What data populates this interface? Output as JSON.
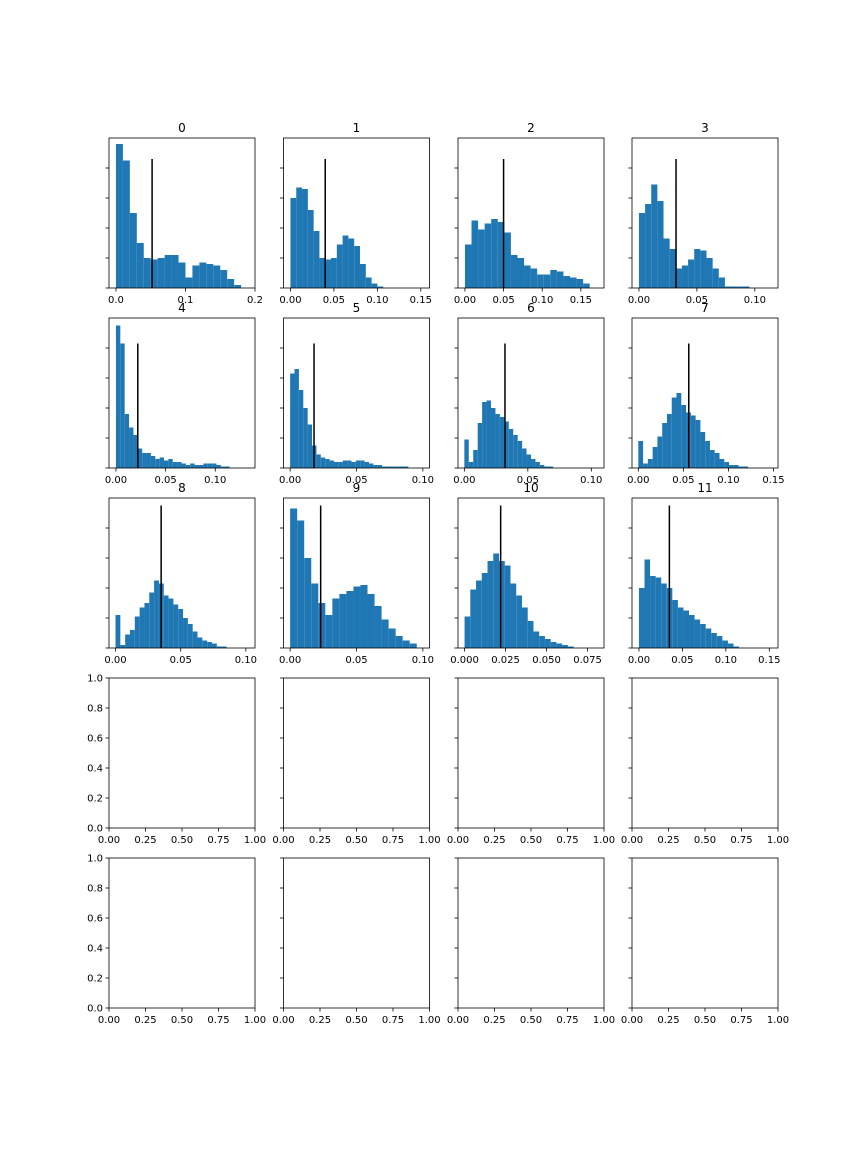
{
  "figure": {
    "rows": 5,
    "cols": 4,
    "bar_color": "#1f77b4",
    "marker_color": "#000000"
  },
  "chart_data": [
    {
      "type": "bar",
      "title": "0",
      "xlim": [
        -0.01,
        0.2
      ],
      "ylim": [
        0,
        1.0
      ],
      "x_ticks": [
        0.0,
        0.1,
        0.2
      ],
      "x_tick_labels": [
        "0.0",
        "0.1",
        "0.2"
      ],
      "y_ticks": [
        0.0,
        0.2,
        0.4,
        0.6,
        0.8
      ],
      "y_tick_labels": [],
      "bin_start": 0.0,
      "bin_width": 0.01,
      "values": [
        0.96,
        0.85,
        0.5,
        0.3,
        0.2,
        0.19,
        0.2,
        0.22,
        0.22,
        0.17,
        0.07,
        0.15,
        0.17,
        0.16,
        0.15,
        0.12,
        0.06,
        0.02
      ],
      "marker_x": 0.052,
      "marker_height": 0.86
    },
    {
      "type": "bar",
      "title": "1",
      "xlim": [
        -0.008,
        0.16
      ],
      "ylim": [
        0,
        1.0
      ],
      "x_ticks": [
        0.0,
        0.05,
        0.1,
        0.15
      ],
      "x_tick_labels": [
        "0.00",
        "0.05",
        "0.10",
        "0.15"
      ],
      "y_ticks": [
        0.0,
        0.2,
        0.4,
        0.6,
        0.8
      ],
      "y_tick_labels": [],
      "bin_start": 0.0,
      "bin_width": 0.00667,
      "values": [
        0.6,
        0.67,
        0.66,
        0.52,
        0.38,
        0.2,
        0.19,
        0.2,
        0.29,
        0.35,
        0.33,
        0.28,
        0.16,
        0.07,
        0.03,
        0.01
      ],
      "marker_x": 0.04,
      "marker_height": 0.86
    },
    {
      "type": "bar",
      "title": "2",
      "xlim": [
        -0.009,
        0.18
      ],
      "ylim": [
        0,
        1.0
      ],
      "x_ticks": [
        0.0,
        0.05,
        0.1,
        0.15
      ],
      "x_tick_labels": [
        "0.00",
        "0.05",
        "0.10",
        "0.15"
      ],
      "y_ticks": [
        0.0,
        0.2,
        0.4,
        0.6,
        0.8
      ],
      "y_tick_labels": [],
      "bin_start": 0.0,
      "bin_width": 0.0085,
      "values": [
        0.29,
        0.45,
        0.39,
        0.43,
        0.46,
        0.44,
        0.37,
        0.22,
        0.2,
        0.15,
        0.13,
        0.09,
        0.09,
        0.12,
        0.11,
        0.08,
        0.07,
        0.06,
        0.03
      ],
      "marker_x": 0.05,
      "marker_height": 0.86
    },
    {
      "type": "bar",
      "title": "3",
      "xlim": [
        -0.006,
        0.12
      ],
      "ylim": [
        0,
        1.0
      ],
      "x_ticks": [
        0.0,
        0.05,
        0.1
      ],
      "x_tick_labels": [
        "0.00",
        "0.05",
        "0.10"
      ],
      "y_ticks": [
        0.0,
        0.2,
        0.4,
        0.6,
        0.8
      ],
      "y_tick_labels": [],
      "bin_start": 0.0,
      "bin_width": 0.0053,
      "values": [
        0.5,
        0.56,
        0.69,
        0.58,
        0.33,
        0.26,
        0.13,
        0.15,
        0.19,
        0.26,
        0.25,
        0.2,
        0.13,
        0.07,
        0.01,
        0.01,
        0.01,
        0.01
      ],
      "marker_x": 0.032,
      "marker_height": 0.86
    },
    {
      "type": "bar",
      "title": "4",
      "xlim": [
        -0.007,
        0.14
      ],
      "ylim": [
        0,
        1.0
      ],
      "x_ticks": [
        0.0,
        0.05,
        0.1
      ],
      "x_tick_labels": [
        "0.00",
        "0.05",
        "0.10"
      ],
      "y_ticks": [
        0.0,
        0.2,
        0.4,
        0.6,
        0.8
      ],
      "y_tick_labels": [],
      "bin_start": 0.0,
      "bin_width": 0.0044,
      "values": [
        0.95,
        0.83,
        0.36,
        0.27,
        0.22,
        0.13,
        0.1,
        0.1,
        0.08,
        0.06,
        0.07,
        0.05,
        0.06,
        0.04,
        0.04,
        0.03,
        0.02,
        0.03,
        0.02,
        0.02,
        0.03,
        0.03,
        0.03,
        0.02,
        0.01,
        0.01
      ],
      "marker_x": 0.022,
      "marker_height": 0.83
    },
    {
      "type": "bar",
      "title": "5",
      "xlim": [
        -0.005,
        0.105
      ],
      "ylim": [
        0,
        1.0
      ],
      "x_ticks": [
        0.0,
        0.05,
        0.1
      ],
      "x_tick_labels": [
        "0.00",
        "0.05",
        "0.10"
      ],
      "y_ticks": [
        0.0,
        0.2,
        0.4,
        0.6,
        0.8
      ],
      "y_tick_labels": [],
      "bin_start": 0.0,
      "bin_width": 0.0033,
      "values": [
        0.63,
        0.66,
        0.52,
        0.4,
        0.29,
        0.15,
        0.09,
        0.07,
        0.06,
        0.05,
        0.04,
        0.04,
        0.05,
        0.05,
        0.04,
        0.05,
        0.05,
        0.04,
        0.03,
        0.02,
        0.02,
        0.01,
        0.01,
        0.01,
        0.01,
        0.01,
        0.01
      ],
      "marker_x": 0.018,
      "marker_height": 0.83
    },
    {
      "type": "bar",
      "title": "6",
      "xlim": [
        -0.005,
        0.11
      ],
      "ylim": [
        0,
        1.0
      ],
      "x_ticks": [
        0.0,
        0.05,
        0.1
      ],
      "x_tick_labels": [
        "0.00",
        "0.05",
        "0.10"
      ],
      "y_ticks": [
        0.0,
        0.2,
        0.4,
        0.6,
        0.8
      ],
      "y_tick_labels": [],
      "bin_start": 0.0,
      "bin_width": 0.0035,
      "values": [
        0.19,
        0.04,
        0.12,
        0.3,
        0.44,
        0.45,
        0.4,
        0.36,
        0.34,
        0.31,
        0.26,
        0.22,
        0.18,
        0.13,
        0.09,
        0.06,
        0.04,
        0.02,
        0.01,
        0.01
      ],
      "marker_x": 0.032,
      "marker_height": 0.83
    },
    {
      "type": "bar",
      "title": "7",
      "xlim": [
        -0.007,
        0.155
      ],
      "ylim": [
        0,
        1.0
      ],
      "x_ticks": [
        0.0,
        0.05,
        0.1,
        0.15
      ],
      "x_tick_labels": [
        "0.00",
        "0.05",
        "0.10",
        "0.15"
      ],
      "y_ticks": [
        0.0,
        0.2,
        0.4,
        0.6,
        0.8
      ],
      "y_tick_labels": [],
      "bin_start": 0.0,
      "bin_width": 0.0053,
      "values": [
        0.18,
        0.03,
        0.06,
        0.14,
        0.21,
        0.3,
        0.36,
        0.47,
        0.5,
        0.42,
        0.37,
        0.35,
        0.32,
        0.24,
        0.18,
        0.12,
        0.1,
        0.06,
        0.04,
        0.02,
        0.02,
        0.01,
        0.01
      ],
      "marker_x": 0.056,
      "marker_height": 0.83
    },
    {
      "type": "bar",
      "title": "8",
      "xlim": [
        -0.005,
        0.107
      ],
      "ylim": [
        0,
        1.0
      ],
      "x_ticks": [
        0.0,
        0.05,
        0.1
      ],
      "x_tick_labels": [
        "0.00",
        "0.05",
        "0.10"
      ],
      "y_ticks": [
        0.0,
        0.2,
        0.4,
        0.6,
        0.8
      ],
      "y_tick_labels": [],
      "bin_start": 0.0,
      "bin_width": 0.0037,
      "values": [
        0.22,
        0.02,
        0.09,
        0.12,
        0.21,
        0.27,
        0.3,
        0.37,
        0.45,
        0.43,
        0.35,
        0.33,
        0.29,
        0.26,
        0.2,
        0.16,
        0.11,
        0.07,
        0.05,
        0.04,
        0.03,
        0.01,
        0.01
      ],
      "marker_x": 0.035,
      "marker_height": 0.95
    },
    {
      "type": "bar",
      "title": "9",
      "xlim": [
        -0.005,
        0.105
      ],
      "ylim": [
        0,
        1.0
      ],
      "x_ticks": [
        0.0,
        0.05,
        0.1
      ],
      "x_tick_labels": [
        "0.00",
        "0.05",
        "0.10"
      ],
      "y_ticks": [
        0.0,
        0.2,
        0.4,
        0.6,
        0.8
      ],
      "y_tick_labels": [],
      "bin_start": 0.0,
      "bin_width": 0.0053,
      "values": [
        0.93,
        0.85,
        0.6,
        0.43,
        0.3,
        0.22,
        0.33,
        0.36,
        0.38,
        0.41,
        0.42,
        0.36,
        0.28,
        0.19,
        0.13,
        0.08,
        0.05,
        0.03
      ],
      "marker_x": 0.023,
      "marker_height": 0.95
    },
    {
      "type": "bar",
      "title": "10",
      "xlim": [
        -0.004,
        0.085
      ],
      "ylim": [
        0,
        1.0
      ],
      "x_ticks": [
        0.0,
        0.025,
        0.05,
        0.075
      ],
      "x_tick_labels": [
        "0.000",
        "0.025",
        "0.050",
        "0.075"
      ],
      "y_ticks": [
        0.0,
        0.2,
        0.4,
        0.6,
        0.8
      ],
      "y_tick_labels": [],
      "bin_start": 0.0,
      "bin_width": 0.0035,
      "values": [
        0.21,
        0.39,
        0.45,
        0.5,
        0.58,
        0.63,
        0.58,
        0.55,
        0.43,
        0.35,
        0.27,
        0.18,
        0.11,
        0.08,
        0.06,
        0.04,
        0.03,
        0.02,
        0.01
      ],
      "marker_x": 0.022,
      "marker_height": 0.95
    },
    {
      "type": "bar",
      "title": "11",
      "xlim": [
        -0.008,
        0.16
      ],
      "ylim": [
        0,
        1.0
      ],
      "x_ticks": [
        0.0,
        0.05,
        0.1,
        0.15
      ],
      "x_tick_labels": [
        "0.00",
        "0.05",
        "0.10",
        "0.15"
      ],
      "y_ticks": [
        0.0,
        0.2,
        0.4,
        0.6,
        0.8
      ],
      "y_tick_labels": [],
      "bin_start": 0.0,
      "bin_width": 0.0064,
      "values": [
        0.4,
        0.59,
        0.48,
        0.47,
        0.43,
        0.4,
        0.32,
        0.27,
        0.25,
        0.22,
        0.19,
        0.16,
        0.13,
        0.1,
        0.08,
        0.05,
        0.03,
        0.01
      ],
      "marker_x": 0.035,
      "marker_height": 0.95
    },
    {
      "type": "bar",
      "title": "",
      "xlim": [
        0,
        1
      ],
      "ylim": [
        0,
        1
      ],
      "x_ticks": [
        0,
        0.25,
        0.5,
        0.75,
        1.0
      ],
      "x_tick_labels": [
        "0.00",
        "0.25",
        "0.50",
        "0.75",
        "1.00"
      ],
      "y_ticks": [
        0,
        0.2,
        0.4,
        0.6,
        0.8,
        1.0
      ],
      "y_tick_labels": [
        "0.0",
        "0.2",
        "0.4",
        "0.6",
        "0.8",
        "1.0"
      ],
      "values": []
    },
    {
      "type": "bar",
      "title": "",
      "xlim": [
        0,
        1
      ],
      "ylim": [
        0,
        1
      ],
      "x_ticks": [
        0,
        0.25,
        0.5,
        0.75,
        1.0
      ],
      "x_tick_labels": [
        "0.00",
        "0.25",
        "0.50",
        "0.75",
        "1.00"
      ],
      "y_ticks": [
        0,
        0.2,
        0.4,
        0.6,
        0.8,
        1.0
      ],
      "y_tick_labels": [],
      "values": []
    },
    {
      "type": "bar",
      "title": "",
      "xlim": [
        0,
        1
      ],
      "ylim": [
        0,
        1
      ],
      "x_ticks": [
        0,
        0.25,
        0.5,
        0.75,
        1.0
      ],
      "x_tick_labels": [
        "0.00",
        "0.25",
        "0.50",
        "0.75",
        "1.00"
      ],
      "y_ticks": [
        0,
        0.2,
        0.4,
        0.6,
        0.8,
        1.0
      ],
      "y_tick_labels": [],
      "values": []
    },
    {
      "type": "bar",
      "title": "",
      "xlim": [
        0,
        1
      ],
      "ylim": [
        0,
        1
      ],
      "x_ticks": [
        0,
        0.25,
        0.5,
        0.75,
        1.0
      ],
      "x_tick_labels": [
        "0.00",
        "0.25",
        "0.50",
        "0.75",
        "1.00"
      ],
      "y_ticks": [
        0,
        0.2,
        0.4,
        0.6,
        0.8,
        1.0
      ],
      "y_tick_labels": [],
      "values": []
    },
    {
      "type": "bar",
      "title": "",
      "xlim": [
        0,
        1
      ],
      "ylim": [
        0,
        1
      ],
      "x_ticks": [
        0,
        0.25,
        0.5,
        0.75,
        1.0
      ],
      "x_tick_labels": [
        "0.00",
        "0.25",
        "0.50",
        "0.75",
        "1.00"
      ],
      "y_ticks": [
        0,
        0.2,
        0.4,
        0.6,
        0.8,
        1.0
      ],
      "y_tick_labels": [
        "0.0",
        "0.2",
        "0.4",
        "0.6",
        "0.8",
        "1.0"
      ],
      "values": []
    },
    {
      "type": "bar",
      "title": "",
      "xlim": [
        0,
        1
      ],
      "ylim": [
        0,
        1
      ],
      "x_ticks": [
        0,
        0.25,
        0.5,
        0.75,
        1.0
      ],
      "x_tick_labels": [
        "0.00",
        "0.25",
        "0.50",
        "0.75",
        "1.00"
      ],
      "y_ticks": [
        0,
        0.2,
        0.4,
        0.6,
        0.8,
        1.0
      ],
      "y_tick_labels": [],
      "values": []
    },
    {
      "type": "bar",
      "title": "",
      "xlim": [
        0,
        1
      ],
      "ylim": [
        0,
        1
      ],
      "x_ticks": [
        0,
        0.25,
        0.5,
        0.75,
        1.0
      ],
      "x_tick_labels": [
        "0.00",
        "0.25",
        "0.50",
        "0.75",
        "1.00"
      ],
      "y_ticks": [
        0,
        0.2,
        0.4,
        0.6,
        0.8,
        1.0
      ],
      "y_tick_labels": [],
      "values": []
    },
    {
      "type": "bar",
      "title": "",
      "xlim": [
        0,
        1
      ],
      "ylim": [
        0,
        1
      ],
      "x_ticks": [
        0,
        0.25,
        0.5,
        0.75,
        1.0
      ],
      "x_tick_labels": [
        "0.00",
        "0.25",
        "0.50",
        "0.75",
        "1.00"
      ],
      "y_ticks": [
        0,
        0.2,
        0.4,
        0.6,
        0.8,
        1.0
      ],
      "y_tick_labels": [],
      "values": []
    }
  ]
}
